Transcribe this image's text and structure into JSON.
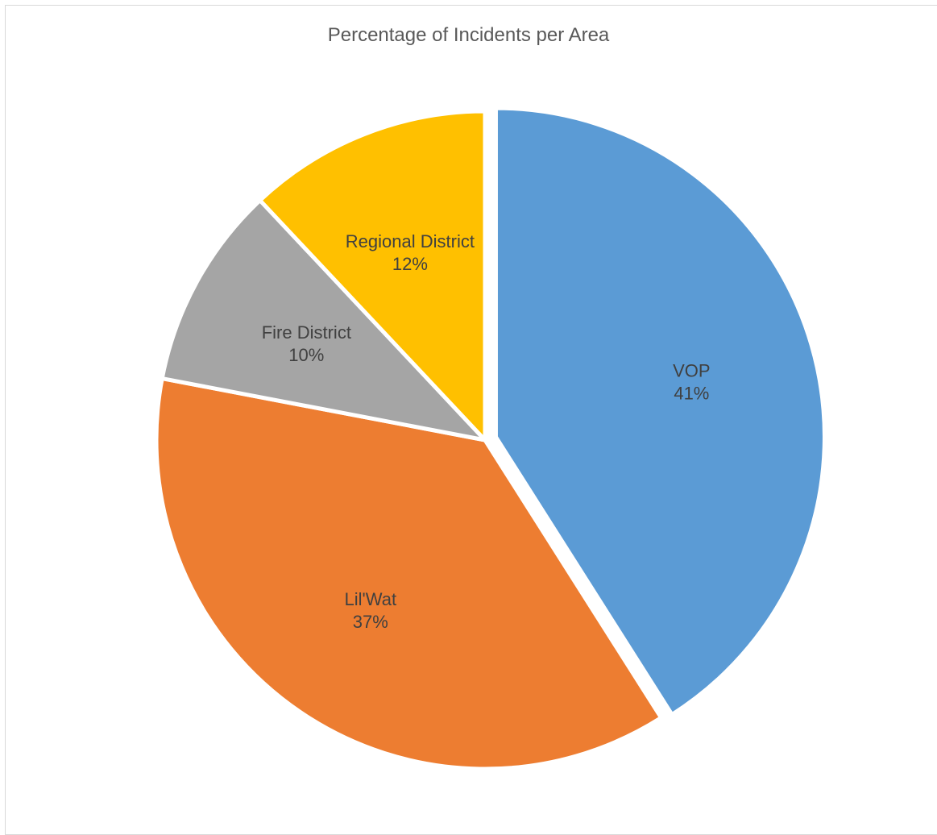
{
  "chart_data": {
    "type": "pie",
    "title": "Percentage of Incidents per Area",
    "categories": [
      "VOP",
      "Lil'Wat",
      "Fire District",
      "Regional District"
    ],
    "values": [
      41,
      37,
      10,
      12
    ],
    "labels": [
      "41%",
      "37%",
      "10%",
      "12%"
    ],
    "colors": [
      "#5b9bd5",
      "#ed7d31",
      "#a5a5a5",
      "#ffc000"
    ],
    "start_angle": "12 o'clock",
    "direction": "clockwise",
    "exploded": "VOP",
    "legend": "none"
  }
}
